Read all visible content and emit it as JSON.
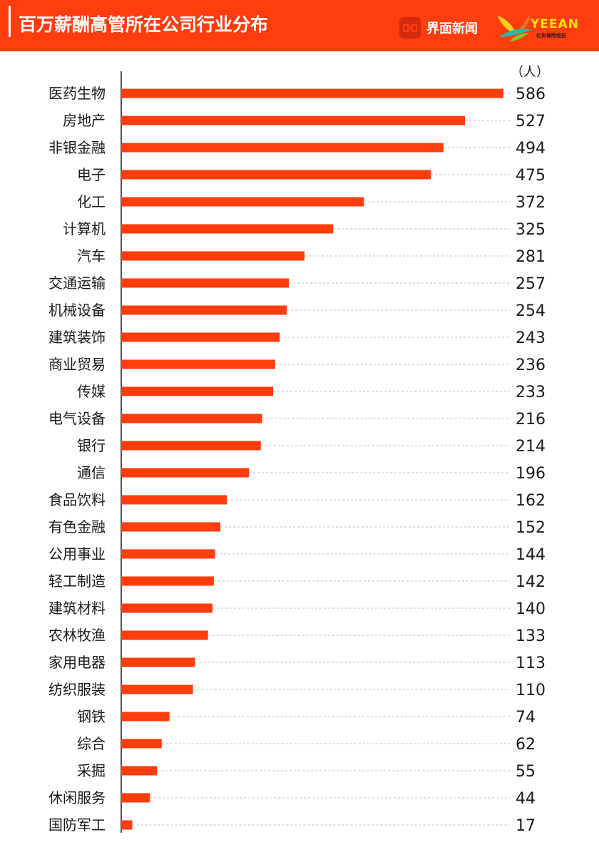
{
  "header": {
    "title": "百万薪酬高管所在公司行业分布",
    "brand_jiemian": "界面新闻",
    "brand_yeean": "YEEAN",
    "brand_yeean_sub": "亿安保险经纪"
  },
  "colors": {
    "header_bg": "#ff3d0f",
    "bar": "#ff3d0f",
    "gridline": "#bfbfbf"
  },
  "chart_data": {
    "type": "bar",
    "orientation": "horizontal",
    "unit": "（人）",
    "categories": [
      "医药生物",
      "房地产",
      "非银金融",
      "电子",
      "化工",
      "计算机",
      "汽车",
      "交通运输",
      "机械设备",
      "建筑装饰",
      "商业贸易",
      "传媒",
      "电气设备",
      "银行",
      "通信",
      "食品饮料",
      "有色金融",
      "公用事业",
      "轻工制造",
      "建筑材料",
      "农林牧渔",
      "家用电器",
      "纺织服装",
      "钢铁",
      "综合",
      "采掘",
      "休闲服务",
      "国防军工"
    ],
    "values": [
      586,
      527,
      494,
      475,
      372,
      325,
      281,
      257,
      254,
      243,
      236,
      233,
      216,
      214,
      196,
      162,
      152,
      144,
      142,
      140,
      133,
      113,
      110,
      74,
      62,
      55,
      44,
      17
    ],
    "grid": "dashed horizontal leaders",
    "legend": "none"
  }
}
